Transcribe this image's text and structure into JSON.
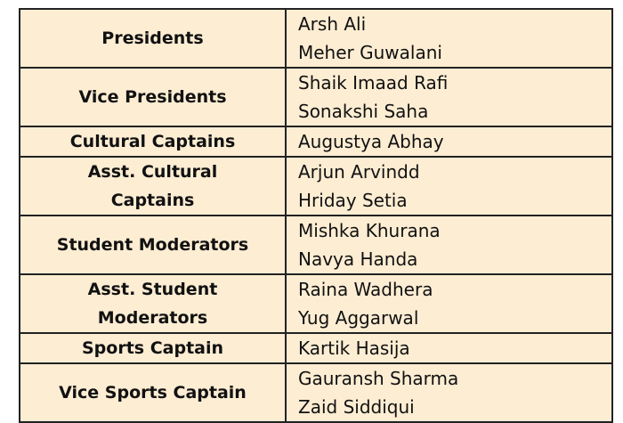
{
  "rows": [
    {
      "role": "Presidents",
      "names": [
        "Arsh Ali",
        "Meher Guwalani"
      ]
    },
    {
      "role": "Vice Presidents",
      "names": [
        "Shaik Imaad Rafi",
        "Sonakshi Saha"
      ]
    },
    {
      "role": "Cultural Captains",
      "names": [
        "Augustya Abhay"
      ]
    },
    {
      "role": "Asst. Cultural Captains",
      "names": [
        "Arjun Arvindd",
        "Hriday Setia"
      ]
    },
    {
      "role": "Student Moderators",
      "names": [
        "Mishka Khurana",
        "Navya Handa"
      ]
    },
    {
      "role": "Asst. Student Moderators",
      "names": [
        "Raina Wadhera",
        "Yug Aggarwal"
      ]
    },
    {
      "role": "Sports Captain",
      "names": [
        "Kartik Hasija"
      ]
    },
    {
      "role": "Vice Sports Captain",
      "names": [
        "Gauransh Sharma",
        "Zaid Siddiqui"
      ]
    }
  ]
}
